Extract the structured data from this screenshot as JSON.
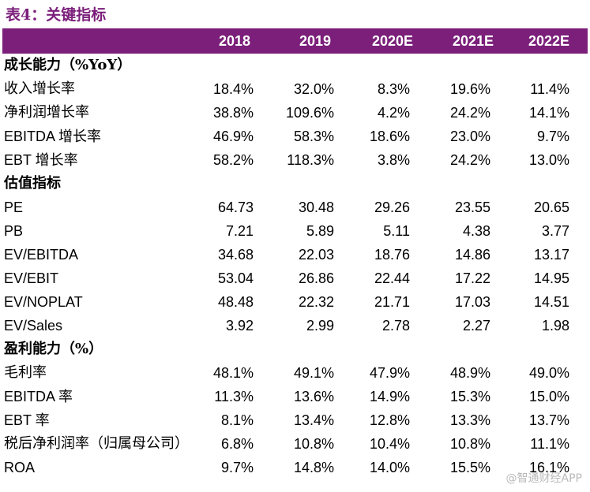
{
  "caption": "表4：关键指标",
  "columns": [
    "2018",
    "2019",
    "2020E",
    "2021E",
    "2022E"
  ],
  "rows": [
    {
      "type": "section",
      "label": "成长能力（%YoY）",
      "values": [
        "",
        "",
        "",
        "",
        ""
      ]
    },
    {
      "type": "data",
      "label": "收入增长率",
      "values": [
        "18.4%",
        "32.0%",
        "8.3%",
        "19.6%",
        "11.4%"
      ]
    },
    {
      "type": "data",
      "label": "净利润增长率",
      "values": [
        "38.8%",
        "109.6%",
        "4.2%",
        "24.2%",
        "14.1%"
      ]
    },
    {
      "type": "data",
      "label": "EBITDA 增长率",
      "values": [
        "46.9%",
        "58.3%",
        "18.6%",
        "23.0%",
        "9.7%"
      ]
    },
    {
      "type": "data",
      "label": "EBT 增长率",
      "values": [
        "58.2%",
        "118.3%",
        "3.8%",
        "24.2%",
        "13.0%"
      ]
    },
    {
      "type": "section",
      "label": "估值指标",
      "values": [
        "",
        "",
        "",
        "",
        ""
      ]
    },
    {
      "type": "data",
      "label": "PE",
      "values": [
        "64.73",
        "30.48",
        "29.26",
        "23.55",
        "20.65"
      ]
    },
    {
      "type": "data",
      "label": "PB",
      "values": [
        "7.21",
        "5.89",
        "5.11",
        "4.38",
        "3.77"
      ]
    },
    {
      "type": "data",
      "label": "EV/EBITDA",
      "values": [
        "34.68",
        "22.03",
        "18.76",
        "14.86",
        "13.17"
      ]
    },
    {
      "type": "data",
      "label": "EV/EBIT",
      "values": [
        "53.04",
        "26.86",
        "22.44",
        "17.22",
        "14.95"
      ]
    },
    {
      "type": "data",
      "label": "EV/NOPLAT",
      "values": [
        "48.48",
        "22.32",
        "21.71",
        "17.03",
        "14.51"
      ]
    },
    {
      "type": "data",
      "label": "EV/Sales",
      "values": [
        "3.92",
        "2.99",
        "2.78",
        "2.27",
        "1.98"
      ]
    },
    {
      "type": "section",
      "label": "盈利能力（%）",
      "values": [
        "",
        "",
        "",
        "",
        ""
      ]
    },
    {
      "type": "data",
      "label": "毛利率",
      "values": [
        "48.1%",
        "49.1%",
        "47.9%",
        "48.9%",
        "49.0%"
      ]
    },
    {
      "type": "data",
      "label": "EBITDA 率",
      "values": [
        "11.3%",
        "13.6%",
        "14.9%",
        "15.3%",
        "15.0%"
      ]
    },
    {
      "type": "data",
      "label": "EBT 率",
      "values": [
        "8.1%",
        "13.4%",
        "12.8%",
        "13.3%",
        "13.7%"
      ]
    },
    {
      "type": "data",
      "label": "税后净利润率（归属母公司）",
      "values": [
        "6.8%",
        "10.8%",
        "10.4%",
        "10.8%",
        "11.1%"
      ]
    },
    {
      "type": "data",
      "label": "ROA",
      "values": [
        "9.7%",
        "14.8%",
        "14.0%",
        "15.5%",
        "16.1%"
      ]
    }
  ],
  "watermark": "@智通财经APP",
  "colors": {
    "header_bg": "#7b1f7a",
    "caption": "#7b1f7a"
  }
}
